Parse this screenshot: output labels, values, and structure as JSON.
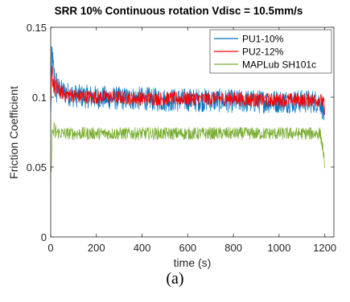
{
  "caption": "(a)",
  "chart_data": {
    "type": "line",
    "title": "SRR 10%  Continuous rotation  Vdisc = 10.5mm/s",
    "xlabel": "time (s)",
    "ylabel": "Friction Coefficient",
    "xlim": [
      0,
      1240
    ],
    "ylim": [
      0,
      0.15
    ],
    "xticks": [
      0,
      200,
      400,
      600,
      800,
      1000,
      1200
    ],
    "xtick_labels": [
      "0",
      "200",
      "400",
      "600",
      "800",
      "1000",
      "1200"
    ],
    "yticks": [
      0,
      0.05,
      0.1,
      0.15
    ],
    "ytick_labels": [
      "0",
      "0.05",
      "0.1",
      "0.15"
    ],
    "grid": false,
    "legend_position": "top-right",
    "series": [
      {
        "name": "PU1-10%",
        "color": "#0072BD",
        "x": [
          0,
          5,
          10,
          20,
          50,
          100,
          200,
          300,
          400,
          500,
          600,
          700,
          800,
          900,
          1000,
          1100,
          1180,
          1195,
          1200
        ],
        "values": [
          0.085,
          0.132,
          0.12,
          0.108,
          0.104,
          0.101,
          0.1,
          0.099,
          0.099,
          0.098,
          0.098,
          0.098,
          0.097,
          0.097,
          0.097,
          0.097,
          0.097,
          0.09,
          0.08
        ],
        "noise": 0.0085
      },
      {
        "name": "PU2-12%",
        "color": "#FF0000",
        "x": [
          0,
          5,
          10,
          20,
          50,
          100,
          200,
          300,
          400,
          500,
          600,
          700,
          800,
          900,
          1000,
          1100,
          1180,
          1195,
          1200
        ],
        "values": [
          0.09,
          0.118,
          0.112,
          0.106,
          0.103,
          0.101,
          0.1,
          0.1,
          0.099,
          0.099,
          0.099,
          0.099,
          0.099,
          0.098,
          0.098,
          0.098,
          0.098,
          0.096,
          0.09
        ],
        "noise": 0.005
      },
      {
        "name": "MAPLub SH101c",
        "color": "#77AC30",
        "x": [
          0,
          5,
          10,
          20,
          50,
          100,
          200,
          300,
          400,
          500,
          600,
          700,
          800,
          900,
          1000,
          1100,
          1180,
          1195,
          1200
        ],
        "values": [
          0.035,
          0.07,
          0.076,
          0.075,
          0.074,
          0.074,
          0.074,
          0.074,
          0.074,
          0.074,
          0.074,
          0.074,
          0.074,
          0.074,
          0.074,
          0.074,
          0.074,
          0.06,
          0.045
        ],
        "noise": 0.0045
      }
    ]
  }
}
